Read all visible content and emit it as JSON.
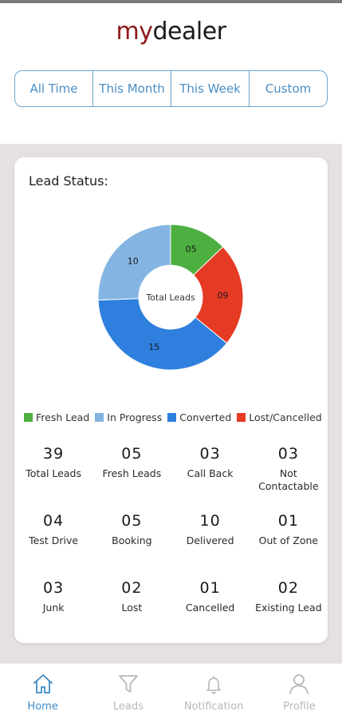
{
  "app": {
    "logo_my": "my",
    "logo_dealer": "dealer"
  },
  "filters": [
    {
      "label": "All Time"
    },
    {
      "label": "This Month"
    },
    {
      "label": "This Week"
    },
    {
      "label": "Custom"
    }
  ],
  "card": {
    "title": "Lead Status:",
    "center_label": "Total Leads"
  },
  "chart_data": {
    "type": "pie",
    "title": "Lead Status:",
    "center_label": "Total Leads",
    "categories": [
      "Fresh Lead",
      "Lost/Cancelled",
      "Converted",
      "In Progress"
    ],
    "values": [
      5,
      9,
      15,
      10
    ],
    "labels": [
      "05",
      "09",
      "15",
      "10"
    ],
    "colors": [
      "#4caf3f",
      "#e53a24",
      "#2f7fde",
      "#84b5e2"
    ],
    "legend": [
      "Fresh Lead",
      "In Progress",
      "Converted",
      "Lost/Cancelled"
    ],
    "legend_colors": [
      "#4caf3f",
      "#84b5e2",
      "#2f7fde",
      "#e53a24"
    ],
    "legend_position": "bottom"
  },
  "stats": [
    {
      "value": "39",
      "label": "Total Leads"
    },
    {
      "value": "05",
      "label": "Fresh Leads"
    },
    {
      "value": "03",
      "label": "Call Back"
    },
    {
      "value": "03",
      "label": "Not Contactable"
    },
    {
      "value": "04",
      "label": "Test Drive"
    },
    {
      "value": "05",
      "label": "Booking"
    },
    {
      "value": "10",
      "label": "Delivered"
    },
    {
      "value": "01",
      "label": "Out of Zone"
    },
    {
      "value": "03",
      "label": "Junk"
    },
    {
      "value": "02",
      "label": "Lost"
    },
    {
      "value": "01",
      "label": "Cancelled"
    },
    {
      "value": "02",
      "label": "Existing Lead"
    }
  ],
  "nav": [
    {
      "label": "Home",
      "icon": "home-icon",
      "active": true
    },
    {
      "label": "Leads",
      "icon": "filter-icon",
      "active": false
    },
    {
      "label": "Notification",
      "icon": "bell-icon",
      "active": false
    },
    {
      "label": "Profile",
      "icon": "user-icon",
      "active": false
    }
  ],
  "colors": {
    "accent": "#3d8ac6",
    "filter_border": "#6fa4cf",
    "brand_red": "#8b1a1a",
    "background_grey": "#e6e1e1"
  }
}
